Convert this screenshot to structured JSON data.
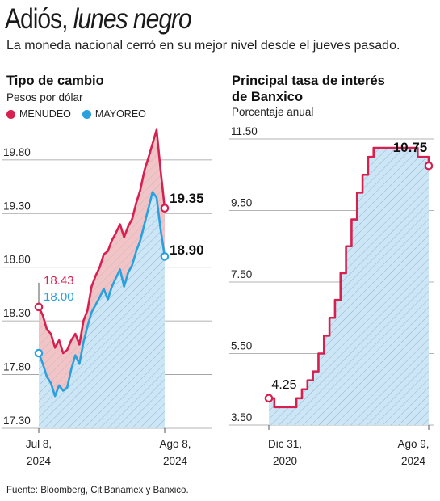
{
  "headline": {
    "part1": "Adiós, ",
    "part2": "lunes negro"
  },
  "dek": "La moneda nacional cerró en su mejor nivel desde el jueves pasado.",
  "source": "Fuente: Bloomberg, CitiBanamex y Banxico.",
  "colors": {
    "menudeo": "#d6204f",
    "mayoreo": "#2aa0de",
    "fill_red": "#f3c4c6",
    "fill_blue": "#cde6f6",
    "hatch": "#8fb4d0"
  },
  "chart_data": [
    {
      "type": "line",
      "title": "Tipo de cambio",
      "subtitle": "Pesos por dólar",
      "ylim": [
        17.3,
        20.1
      ],
      "yticks": [
        "19.80",
        "19.30",
        "18.80",
        "18.30",
        "17.80",
        "17.30"
      ],
      "x_labels": [
        {
          "line1": "Jul 8,",
          "line2": "2024"
        },
        {
          "line1": "Ago 8,",
          "line2": "2024"
        }
      ],
      "x": [
        0,
        1,
        2,
        3,
        4,
        5,
        6,
        7,
        8,
        9,
        10,
        11,
        12,
        13,
        14,
        15,
        16,
        17,
        18,
        19,
        20,
        21,
        22,
        23,
        24,
        25,
        26,
        27,
        28,
        29,
        30,
        31
      ],
      "series": [
        {
          "name": "MENUDEO",
          "color": "#d6204f",
          "values": [
            18.43,
            18.35,
            18.22,
            18.18,
            18.05,
            18.12,
            18.0,
            18.03,
            18.12,
            18.18,
            18.08,
            18.3,
            18.4,
            18.62,
            18.72,
            18.8,
            18.92,
            18.95,
            19.05,
            19.12,
            19.2,
            19.08,
            19.18,
            19.25,
            19.4,
            19.52,
            19.7,
            19.82,
            19.95,
            20.08,
            19.7,
            19.35
          ],
          "start_label": "18.43",
          "end_label": "19.35"
        },
        {
          "name": "MAYOREO",
          "color": "#2aa0de",
          "values": [
            18.0,
            17.9,
            17.78,
            17.72,
            17.6,
            17.7,
            17.65,
            17.68,
            17.85,
            17.98,
            17.9,
            18.1,
            18.25,
            18.38,
            18.45,
            18.52,
            18.6,
            18.5,
            18.62,
            18.7,
            18.78,
            18.62,
            18.75,
            18.82,
            18.95,
            19.05,
            19.2,
            19.35,
            19.5,
            19.45,
            19.15,
            18.9
          ],
          "start_label": "18.00",
          "end_label": "18.90"
        }
      ]
    },
    {
      "type": "line",
      "title": "Principal tasa de interés de Banxico",
      "title_line1": "Principal tasa de interés",
      "title_line2": "de Banxico",
      "subtitle": "Porcentaje anual",
      "ylim": [
        3.5,
        11.5
      ],
      "yticks": [
        "11.50",
        "9.50",
        "7.50",
        "5.50",
        "3.50"
      ],
      "x_labels": [
        {
          "line1": "Dic 31,",
          "line2": "2020"
        },
        {
          "line1": "Ago 9,",
          "line2": "2024"
        }
      ],
      "series": [
        {
          "name": "Tasa",
          "color": "#d6204f",
          "step_values": [
            4.25,
            4.0,
            4.0,
            4.0,
            4.0,
            4.25,
            4.5,
            4.75,
            5.0,
            5.5,
            6.0,
            6.5,
            7.0,
            7.75,
            8.5,
            9.25,
            10.0,
            10.5,
            11.0,
            11.25,
            11.25,
            11.25,
            11.25,
            11.25,
            11.25,
            11.25,
            11.25,
            11.0,
            11.0,
            10.75
          ],
          "start_label": "4.25",
          "end_label": "10.75"
        }
      ]
    }
  ]
}
